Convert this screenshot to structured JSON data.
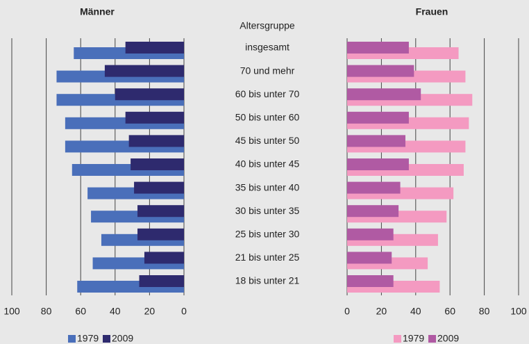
{
  "chart_data": [
    {
      "type": "bar",
      "orientation": "horizontal",
      "title": "Männer",
      "y_label": "Altersgruppe",
      "x_reversed": true,
      "categories": [
        "insgesamt",
        "70 und mehr",
        "60 bis unter 70",
        "50 bis unter 60",
        "45 bis unter 50",
        "40 bis unter 45",
        "35 bis unter 40",
        "30 bis unter 35",
        "25 bis unter 30",
        "21 bis unter 25",
        "18 bis unter 21"
      ],
      "series": [
        {
          "name": "1979",
          "color": "#4a6fba",
          "values": [
            64,
            74,
            74,
            69,
            69,
            65,
            56,
            54,
            48,
            53,
            62
          ]
        },
        {
          "name": "2009",
          "color": "#2e2a6e",
          "values": [
            34,
            46,
            40,
            34,
            32,
            31,
            29,
            27,
            27,
            23,
            26
          ]
        }
      ],
      "xlim": [
        0,
        100
      ],
      "xticks": [
        100,
        80,
        60,
        40,
        20,
        0
      ],
      "grid": true,
      "legend": "bottom"
    },
    {
      "type": "bar",
      "orientation": "horizontal",
      "title": "Frauen",
      "x_reversed": false,
      "series": [
        {
          "name": "1979",
          "color": "#f49ac1",
          "values": [
            65,
            69,
            73,
            71,
            69,
            68,
            62,
            58,
            53,
            47,
            54
          ]
        },
        {
          "name": "2009",
          "color": "#b05aa3",
          "values": [
            36,
            39,
            43,
            36,
            34,
            36,
            31,
            30,
            27,
            26,
            27
          ]
        }
      ],
      "xlim": [
        0,
        100
      ],
      "xticks": [
        0,
        20,
        40,
        60,
        80,
        100
      ],
      "grid": true,
      "legend": "bottom"
    }
  ]
}
